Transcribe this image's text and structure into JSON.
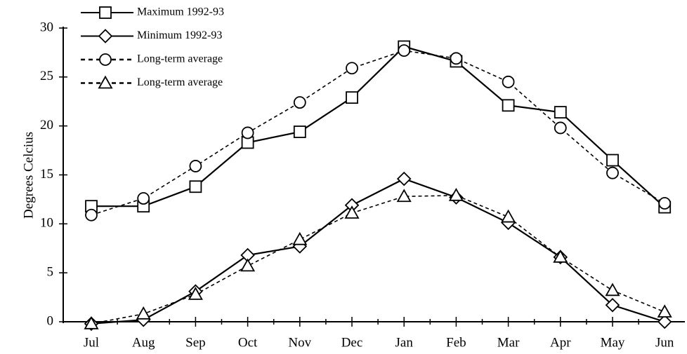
{
  "chart_data": {
    "type": "line",
    "y_label": "Degrees Celcius",
    "categories": [
      "Jul",
      "Aug",
      "Sep",
      "Oct",
      "Nov",
      "Dec",
      "Jan",
      "Feb",
      "Mar",
      "Apr",
      "May",
      "Jun"
    ],
    "series": [
      {
        "name": "Maximum 1992-93",
        "color": "#000000",
        "marker": "square",
        "dashed": false,
        "values": [
          11.8,
          11.8,
          13.8,
          18.3,
          19.4,
          22.9,
          28.1,
          26.6,
          22.1,
          21.4,
          16.5,
          11.7
        ]
      },
      {
        "name": "Minimum 1992-93",
        "color": "#000000",
        "marker": "diamond",
        "dashed": false,
        "values": [
          -0.2,
          0.2,
          3.1,
          6.8,
          7.7,
          11.9,
          14.6,
          12.7,
          10.1,
          6.6,
          1.7,
          0
        ]
      },
      {
        "name": "Long-term average",
        "color": "#000000",
        "marker": "circle",
        "dashed": true,
        "values": [
          10.9,
          12.6,
          15.9,
          19.3,
          22.4,
          25.9,
          27.7,
          26.9,
          24.5,
          19.8,
          15.2,
          12.1
        ]
      },
      {
        "name": "Long-term average",
        "color": "#000000",
        "marker": "triangle",
        "dashed": true,
        "values": [
          -0.2,
          0.8,
          2.8,
          5.7,
          8.4,
          11.1,
          12.8,
          12.9,
          10.7,
          6.6,
          3.2,
          1.0
        ]
      }
    ],
    "ylim": [
      0,
      30
    ],
    "yticks": [
      0,
      5,
      10,
      15,
      20,
      25,
      30
    ]
  }
}
